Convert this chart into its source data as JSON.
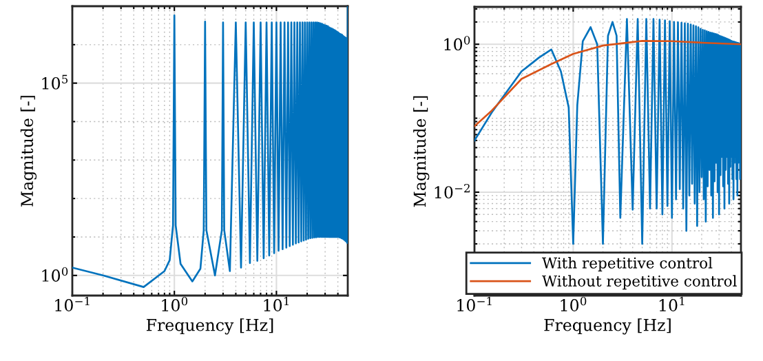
{
  "chart_data": [
    {
      "type": "line",
      "xlabel": "Frequency [Hz]",
      "ylabel": "Magnitude [-]",
      "log": "xy",
      "grid": true,
      "line_style": "solid",
      "marker": "none",
      "xlim": [
        0.1,
        50
      ],
      "xticks": [
        {
          "value": 0.1,
          "label": "10$^{−1}$"
        },
        {
          "value": 1,
          "label": "10$^{0}$"
        },
        {
          "value": 10,
          "label": "10$^{1}$"
        }
      ],
      "ylim": [
        0.3,
        10000000
      ],
      "yticks": [
        {
          "value": 1,
          "label": "10$^{0}$"
        },
        {
          "value": 100000,
          "label": "10$^{5}$"
        }
      ],
      "series": [
        {
          "color": "#0072bd",
          "x": [
            0.1,
            0.2,
            0.5,
            0.8,
            0.9,
            0.97,
            1,
            1.03,
            1.15,
            1.5,
            1.8,
            1.94,
            2,
            2.06,
            2.5,
            2.92,
            3,
            3.08,
            3.5,
            4,
            4.5,
            5,
            5.5,
            6,
            6.5,
            7,
            7.5,
            8,
            8.5,
            9,
            9.5,
            10,
            10.5,
            11,
            11.5,
            12,
            12.5,
            13,
            13.5,
            14,
            14.5,
            15,
            15.5,
            16,
            16.5,
            17,
            17.5,
            18,
            18.5,
            19,
            19.5,
            20,
            20.5,
            21,
            21.5,
            22,
            22.5,
            23,
            23.5,
            24,
            24.5,
            25,
            25.5,
            26,
            26.5,
            27,
            27.5,
            28,
            28.5,
            29,
            29.5,
            30,
            30.5,
            31,
            31.5,
            32,
            32.5,
            33,
            33.5,
            34,
            34.5,
            35,
            35.5,
            36,
            36.5,
            37,
            37.5,
            38,
            38.5,
            39,
            39.5,
            40,
            40.5,
            41,
            41.5,
            42,
            42.5,
            43,
            43.5,
            44,
            44.5,
            45,
            45.5,
            46,
            46.5,
            47,
            47.5,
            48,
            48.5,
            49,
            49.5,
            50
          ],
          "values": [
            1.6,
            1.0,
            0.5,
            1.3,
            2.5,
            20,
            5800000,
            20,
            2,
            0.7,
            1.5,
            15,
            4000000,
            15,
            1.0,
            15,
            3800000,
            15,
            1.3,
            3800000,
            1.6,
            3800000,
            2.1,
            3800000,
            2.4,
            3800000,
            2.8,
            3800000,
            3.3,
            3800000,
            3.8,
            3800000,
            4.4,
            3800000,
            4.8,
            3800000,
            5.3,
            3800000,
            5.8,
            3800000,
            6.3,
            3800000,
            6.8,
            3800000,
            7.2,
            3800000,
            7.7,
            3800000,
            8.1,
            3800000,
            8.5,
            3800000,
            9,
            3800000,
            9.3,
            3800000,
            9.5,
            3800000,
            9.7,
            3800000,
            9.8,
            3800000,
            10,
            3700000,
            10,
            3600000,
            10,
            3500000,
            10,
            3300000,
            10,
            3200000,
            10,
            3100000,
            10,
            3000000,
            10,
            2800000,
            10,
            2700000,
            10,
            2600000,
            10,
            2500000,
            10,
            2400000,
            10,
            2300000,
            10,
            2200000,
            10,
            2100000,
            10,
            2000000,
            9.8,
            1900000,
            9.6,
            1850000,
            9.3,
            1800000,
            9,
            1700000,
            8.7,
            1600000,
            8.3,
            1550000,
            7.9,
            1500000,
            7.5,
            1400000,
            7,
            10000000
          ]
        }
      ]
    },
    {
      "type": "line",
      "xlabel": "Frequency [Hz]",
      "ylabel": "Magnitude [-]",
      "log": "xy",
      "grid": true,
      "line_style": "solid",
      "marker": "none",
      "legend": "bottom",
      "xlim": [
        0.1,
        50
      ],
      "xticks": [
        {
          "value": 0.1,
          "label": "10$^{−1}$"
        },
        {
          "value": 1,
          "label": "10$^{0}$"
        },
        {
          "value": 10,
          "label": "10$^{1}$"
        }
      ],
      "ylim": [
        0.0004,
        3.2
      ],
      "yticks": [
        {
          "value": 0.01,
          "label": "10$^{−2}$"
        },
        {
          "value": 1,
          "label": "10$^{0}$"
        }
      ],
      "series": [
        {
          "name": "With repetitive control",
          "color": "#0072bd",
          "x": [
            0.1,
            0.15,
            0.3,
            0.45,
            0.6,
            0.75,
            0.9,
            1,
            1.1,
            1.25,
            1.5,
            1.75,
            2,
            2.25,
            2.5,
            2.75,
            3,
            3.5,
            4,
            4.5,
            5,
            5.5,
            6,
            6.5,
            7,
            7.5,
            8,
            8.5,
            9,
            9.5,
            10,
            10.5,
            11,
            11.5,
            12,
            12.5,
            13,
            13.5,
            14,
            14.5,
            15,
            15.5,
            16,
            16.5,
            17,
            17.5,
            18,
            18.5,
            19,
            19.5,
            20,
            20.5,
            21,
            21.5,
            22,
            22.5,
            23,
            23.5,
            24,
            24.5,
            25,
            25.5,
            26,
            26.5,
            27,
            27.5,
            28,
            28.5,
            29,
            29.5,
            30,
            30.5,
            31,
            31.5,
            32,
            32.5,
            33,
            33.5,
            34,
            34.5,
            35,
            35.5,
            36,
            36.5,
            37,
            37.5,
            38,
            38.5,
            39,
            39.5,
            40,
            40.5,
            41,
            41.5,
            42,
            42.5,
            43,
            43.5,
            44,
            44.5,
            45,
            45.5,
            46,
            46.5,
            47,
            47.5,
            48,
            48.5,
            49,
            49.5,
            50
          ],
          "values": [
            0.05,
            0.12,
            0.43,
            0.66,
            0.85,
            0.43,
            0.14,
            0.002,
            0.15,
            1.1,
            1.7,
            1.0,
            0.002,
            1.3,
            2.0,
            1.3,
            0.0045,
            2.2,
            0.0058,
            2.2,
            0.002,
            2.2,
            0.006,
            2.2,
            0.006,
            2.15,
            0.005,
            2.1,
            0.0065,
            2.05,
            0.0045,
            2.0,
            0.008,
            1.98,
            0.011,
            1.95,
            0.006,
            1.92,
            0.003,
            1.9,
            0.009,
            1.85,
            0.013,
            1.8,
            0.007,
            1.75,
            0.0035,
            1.7,
            0.01,
            1.62,
            0.016,
            1.57,
            0.008,
            1.54,
            0.004,
            1.5,
            0.012,
            1.47,
            0.02,
            1.44,
            0.009,
            1.42,
            0.0045,
            1.4,
            0.014,
            1.38,
            0.025,
            1.36,
            0.01,
            1.33,
            0.005,
            1.3,
            0.017,
            1.28,
            0.03,
            1.26,
            0.012,
            1.24,
            0.006,
            1.22,
            0.02,
            1.2,
            0.03,
            1.18,
            0.013,
            1.16,
            0.007,
            1.14,
            0.022,
            1.12,
            0.03,
            1.1,
            0.015,
            1.09,
            0.008,
            1.08,
            0.025,
            1.07,
            0.03,
            1.06,
            0.015,
            1.05,
            0.009,
            1.04,
            0.025,
            1.03,
            0.03,
            1.02,
            0.015,
            1.0,
            0.02
          ]
        },
        {
          "name": "Without repetitive control",
          "color": "#d95319",
          "x": [
            0.1,
            0.15,
            0.3,
            0.6,
            1,
            2,
            5,
            10,
            20,
            50
          ],
          "values": [
            0.078,
            0.127,
            0.34,
            0.54,
            0.74,
            0.96,
            1.11,
            1.1,
            1.05,
            1.0
          ]
        }
      ]
    }
  ]
}
